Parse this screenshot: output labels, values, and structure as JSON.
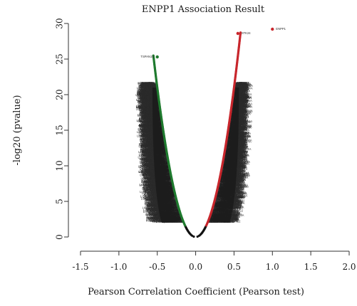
{
  "chart_data": {
    "type": "scatter",
    "title": "ENPP1 Association Result",
    "xlabel": "Pearson Correlation Coefficient (Pearson test)",
    "ylabel": "-log20 (pvalue)",
    "xlim": [
      -1.5,
      2.0
    ],
    "ylim": [
      0,
      30
    ],
    "x_ticks": [
      "-1.5",
      "-1.0",
      "-0.5",
      "0.0",
      "0.5",
      "1.0",
      "1.5",
      "2.0"
    ],
    "y_ticks": [
      "0",
      "5",
      "10",
      "15",
      "20",
      "25",
      "30"
    ],
    "grid": false,
    "colors": {
      "negative_significant": "#1f7a2e",
      "positive_significant": "#c8262c",
      "not_significant": "#111111"
    },
    "highlighted_points": [
      {
        "label": "ENPP1",
        "x": 1.0,
        "y": 29.2
      },
      {
        "label": "TSPAN15",
        "x": -0.5,
        "y": 25.3
      },
      {
        "label": "STK24",
        "x": 0.55,
        "y": 28.6
      }
    ],
    "gene_labels": {
      "negative": [
        "TSPAN15",
        "KIAA0040",
        "TMEM45B",
        "LOC100128",
        "ATXN1",
        "DKFZp547",
        "TNFSF13",
        "NCAPD2",
        "PCGF5",
        "SLC39A6"
      ],
      "positive": [
        "STK24",
        "CD302",
        "PEX3",
        "PLA2G4A",
        "ABCC1",
        "RAB31",
        "TRIM22",
        "ITGB1",
        "SPP1",
        "NRP2"
      ]
    }
  }
}
